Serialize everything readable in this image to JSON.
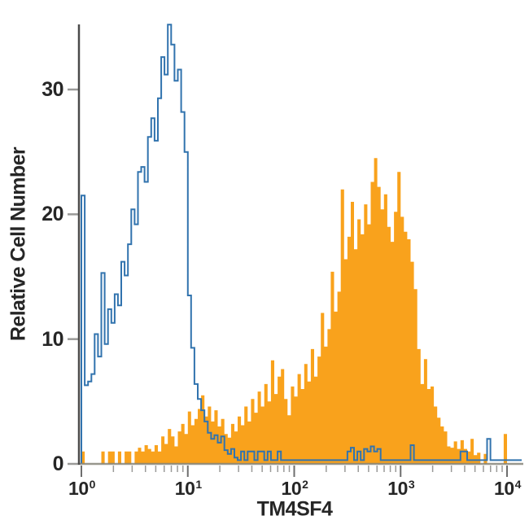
{
  "figure": {
    "background": "#ffffff"
  },
  "chart_data": {
    "type": "area",
    "subtype": "flow_cytometry_overlay_histogram",
    "title": "",
    "xlabel": "TM4SF4",
    "ylabel": "Relative Cell Number",
    "x_scale": "log10",
    "x_range_log10": [
      0,
      4
    ],
    "n_bins": 128,
    "ylim": [
      0,
      35.2
    ],
    "y_ticks": [
      0,
      10,
      20,
      30
    ],
    "x_tick_base": "10",
    "x_tick_exponents": [
      0,
      1,
      2,
      3,
      4
    ],
    "grid": false,
    "legend": "none",
    "colors": {
      "orange_fill": "#F9A21C",
      "blue_line": "#3173AE",
      "y_axis": "#4a4a4a",
      "x_axis": "#87857b",
      "major_tick": "#6e6e6e",
      "minor_tick": "#9a9a98",
      "text": "#262626"
    },
    "series": [
      {
        "id": "open-histogram-blue",
        "style": "open",
        "color": "#3173AE",
        "values": [
          21.5,
          6.3,
          6.6,
          7.2,
          10.4,
          8.6,
          15.3,
          9.6,
          12.4,
          11.3,
          13.6,
          12.7,
          16.2,
          15.1,
          17.6,
          20.4,
          19.2,
          23.4,
          23.8,
          22.6,
          26.2,
          27.7,
          25.9,
          29.3,
          32.6,
          31.2,
          35.2,
          33.6,
          30.7,
          31.6,
          28.2,
          25.0,
          13.5,
          9.3,
          6.4,
          5.2,
          4.3,
          3.4,
          2.5,
          2.0,
          2.3,
          1.7,
          2.2,
          1.1,
          0.8,
          1.2,
          0.5,
          0.3,
          1.0,
          0.3,
          1.0,
          1.0,
          0.3,
          1.0,
          1.0,
          0.3,
          1.0,
          0.3,
          0.3,
          1.0,
          0.3,
          0.3,
          0.3,
          0.3,
          0.3,
          0.3,
          0.3,
          0.3,
          0.3,
          0.3,
          0.3,
          0.3,
          0.3,
          0.3,
          0.3,
          0.3,
          0.3,
          0.3,
          0.3,
          0.3,
          1.0,
          1.3,
          0.3,
          1.0,
          0.3,
          1.2,
          1.0,
          1.4,
          1.0,
          1.2,
          0.3,
          0.3,
          0.3,
          0.3,
          0.3,
          0.3,
          0.3,
          0.3,
          0.3,
          1.5,
          0.3,
          0.3,
          0.3,
          0.3,
          0.3,
          0.3,
          0.3,
          0.3,
          0.3,
          0.3,
          0.3,
          0.3,
          0.3,
          0.3,
          1.0,
          1.0,
          0.3,
          0.3,
          0.3,
          0.3,
          0.3,
          0.3,
          2.0,
          0.3,
          0.3,
          0.3,
          0.3,
          0.3
        ]
      },
      {
        "id": "filled-histogram-orange",
        "style": "filled",
        "color": "#F9A21C",
        "values": [
          1.0,
          0,
          0,
          0,
          0,
          0,
          1.0,
          0,
          1.0,
          1.0,
          0,
          1.0,
          0,
          1.0,
          1.0,
          0,
          1.0,
          1.3,
          1.0,
          1.5,
          1.2,
          1.0,
          1.5,
          1.0,
          2.2,
          1.6,
          2.8,
          2.2,
          1.4,
          2.6,
          3.2,
          2.4,
          4.2,
          3.1,
          3.6,
          4.4,
          5.5,
          3.8,
          4.6,
          3.4,
          4.3,
          3.0,
          3.6,
          2.4,
          2.1,
          3.2,
          2.6,
          3.8,
          3.1,
          4.6,
          3.4,
          5.2,
          4.1,
          5.8,
          4.6,
          6.4,
          5.0,
          8.3,
          5.6,
          7.0,
          7.6,
          5.2,
          3.9,
          6.2,
          5.4,
          7.2,
          6.0,
          8.0,
          6.6,
          9.2,
          7.0,
          8.6,
          12.1,
          9.4,
          10.8,
          15.4,
          12.2,
          13.8,
          22.0,
          16.4,
          18.2,
          21.0,
          17.2,
          19.6,
          18.4,
          20.8,
          19.2,
          22.6,
          24.5,
          22.2,
          20.4,
          21.6,
          19.0,
          17.8,
          20.2,
          23.4,
          19.8,
          18.6,
          18.0,
          16.2,
          14.0,
          9.2,
          6.4,
          8.4,
          6.0,
          6.2,
          4.6,
          3.7,
          3.0,
          2.6,
          1.4,
          1.3,
          1.8,
          1.2,
          1.9,
          1.2,
          1.0,
          2.0,
          0.7,
          0.9,
          0,
          0.8,
          0,
          0,
          0,
          0,
          0,
          2.4
        ]
      }
    ]
  }
}
